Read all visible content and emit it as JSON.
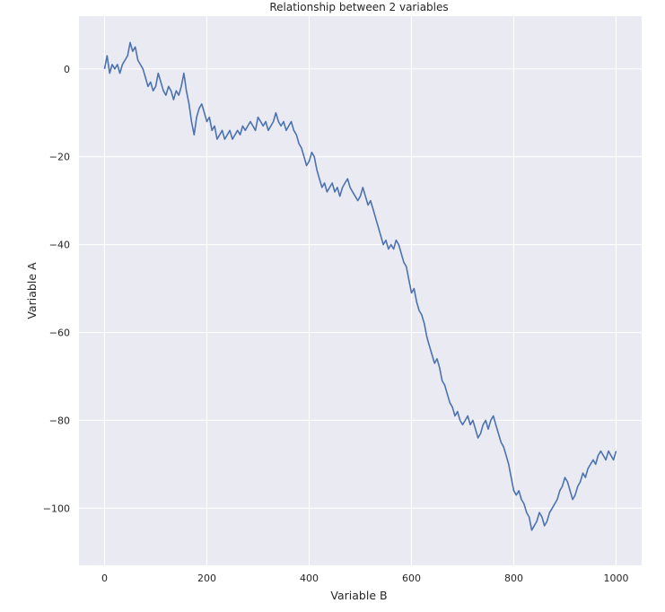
{
  "chart_data": {
    "type": "line",
    "title": "Relationship between 2 variables",
    "xlabel": "Variable B",
    "ylabel": "Variable A",
    "xlim": [
      -50,
      1050
    ],
    "ylim": [
      -113,
      12
    ],
    "xticks": [
      0,
      200,
      400,
      600,
      800,
      1000
    ],
    "yticks": [
      0,
      -20,
      -40,
      -60,
      -80,
      -100
    ],
    "grid": true,
    "background": "#eaeaf2",
    "grid_color": "#ffffff",
    "series": [
      {
        "color": "#4c72b0",
        "x": [
          0,
          5,
          10,
          15,
          20,
          25,
          30,
          35,
          40,
          45,
          50,
          55,
          60,
          65,
          70,
          75,
          80,
          85,
          90,
          95,
          100,
          105,
          110,
          115,
          120,
          125,
          130,
          135,
          140,
          145,
          150,
          155,
          160,
          165,
          170,
          175,
          180,
          185,
          190,
          195,
          200,
          205,
          210,
          215,
          220,
          225,
          230,
          235,
          240,
          245,
          250,
          255,
          260,
          265,
          270,
          275,
          280,
          285,
          290,
          295,
          300,
          305,
          310,
          315,
          320,
          325,
          330,
          335,
          340,
          345,
          350,
          355,
          360,
          365,
          370,
          375,
          380,
          385,
          390,
          395,
          400,
          405,
          410,
          415,
          420,
          425,
          430,
          435,
          440,
          445,
          450,
          455,
          460,
          465,
          470,
          475,
          480,
          485,
          490,
          495,
          500,
          505,
          510,
          515,
          520,
          525,
          530,
          535,
          540,
          545,
          550,
          555,
          560,
          565,
          570,
          575,
          580,
          585,
          590,
          595,
          600,
          605,
          610,
          615,
          620,
          625,
          630,
          635,
          640,
          645,
          650,
          655,
          660,
          665,
          670,
          675,
          680,
          685,
          690,
          695,
          700,
          705,
          710,
          715,
          720,
          725,
          730,
          735,
          740,
          745,
          750,
          755,
          760,
          765,
          770,
          775,
          780,
          785,
          790,
          795,
          800,
          805,
          810,
          815,
          820,
          825,
          830,
          835,
          840,
          845,
          850,
          855,
          860,
          865,
          870,
          875,
          880,
          885,
          890,
          895,
          900,
          905,
          910,
          915,
          920,
          925,
          930,
          935,
          940,
          945,
          950,
          955,
          960,
          965,
          970,
          975,
          980,
          985,
          990,
          995,
          1000
        ],
        "y": [
          0,
          3,
          -1,
          1,
          0,
          1,
          -1,
          1,
          2,
          3,
          6,
          4,
          5,
          2,
          1,
          0,
          -2,
          -4,
          -3,
          -5,
          -4,
          -1,
          -3,
          -5,
          -6,
          -4,
          -5,
          -7,
          -5,
          -6,
          -4,
          -1,
          -5,
          -8,
          -12,
          -15,
          -11,
          -9,
          -8,
          -10,
          -12,
          -11,
          -14,
          -13,
          -16,
          -15,
          -14,
          -16,
          -15,
          -14,
          -16,
          -15,
          -14,
          -15,
          -13,
          -14,
          -13,
          -12,
          -13,
          -14,
          -11,
          -12,
          -13,
          -12,
          -14,
          -13,
          -12,
          -10,
          -12,
          -13,
          -12,
          -14,
          -13,
          -12,
          -14,
          -15,
          -17,
          -18,
          -20,
          -22,
          -21,
          -19,
          -20,
          -23,
          -25,
          -27,
          -26,
          -28,
          -27,
          -26,
          -28,
          -27,
          -29,
          -27,
          -26,
          -25,
          -27,
          -28,
          -29,
          -30,
          -29,
          -27,
          -29,
          -31,
          -30,
          -32,
          -34,
          -36,
          -38,
          -40,
          -39,
          -41,
          -40,
          -41,
          -39,
          -40,
          -42,
          -44,
          -45,
          -48,
          -51,
          -50,
          -53,
          -55,
          -56,
          -58,
          -61,
          -63,
          -65,
          -67,
          -66,
          -68,
          -71,
          -72,
          -74,
          -76,
          -77,
          -79,
          -78,
          -80,
          -81,
          -80,
          -79,
          -81,
          -80,
          -82,
          -84,
          -83,
          -81,
          -80,
          -82,
          -80,
          -79,
          -81,
          -83,
          -85,
          -86,
          -88,
          -90,
          -93,
          -96,
          -97,
          -96,
          -98,
          -99,
          -101,
          -102,
          -105,
          -104,
          -103,
          -101,
          -102,
          -104,
          -103,
          -101,
          -100,
          -99,
          -98,
          -96,
          -95,
          -93,
          -94,
          -96,
          -98,
          -97,
          -95,
          -94,
          -92,
          -93,
          -91,
          -90,
          -89,
          -90,
          -88,
          -87,
          -88,
          -89,
          -87,
          -88,
          -89,
          -87
        ]
      }
    ]
  }
}
